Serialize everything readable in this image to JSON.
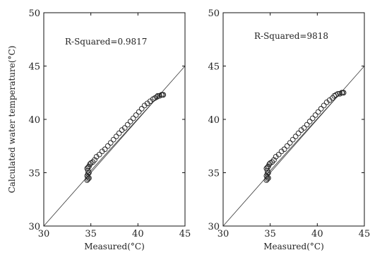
{
  "chart_data": [
    {
      "type": "scatter",
      "title": "",
      "xlabel": "Measured(°C)",
      "ylabel": "Calculated water temperature(°C)",
      "xlim": [
        30,
        45
      ],
      "ylim": [
        30,
        50
      ],
      "xticks": [
        "30",
        "35",
        "40",
        "45"
      ],
      "yticks": [
        "30",
        "35",
        "40",
        "45",
        "50"
      ],
      "annotation": "R-Squared=0.9817",
      "grid": false,
      "reference_line": {
        "x": [
          30,
          45
        ],
        "y": [
          30,
          45
        ]
      },
      "fit_line": {
        "x": [
          34.6,
          42.2
        ],
        "y": [
          34.8,
          42.2
        ]
      },
      "series": [
        {
          "x": [
            34.6,
            34.7,
            34.8,
            34.7,
            34.6,
            34.7,
            34.8,
            34.7,
            34.6,
            34.7,
            34.8,
            34.9,
            35.0,
            35.2,
            35.4,
            35.6,
            35.9,
            36.2,
            36.5,
            36.8,
            37.1,
            37.4,
            37.7,
            38.0,
            38.3,
            38.6,
            38.9,
            39.2,
            39.5,
            39.8,
            40.1,
            40.4,
            40.7,
            41.0,
            41.3,
            41.6,
            41.8,
            42.0,
            42.1,
            42.3,
            42.5,
            42.6,
            42.7
          ],
          "y": [
            34.3,
            34.4,
            34.5,
            34.6,
            34.7,
            34.9,
            35.0,
            35.2,
            35.4,
            35.5,
            35.6,
            35.8,
            35.9,
            36.0,
            36.2,
            36.5,
            36.7,
            37.0,
            37.2,
            37.5,
            37.8,
            38.1,
            38.4,
            38.7,
            39.0,
            39.2,
            39.5,
            39.8,
            40.1,
            40.4,
            40.7,
            41.0,
            41.3,
            41.5,
            41.7,
            41.9,
            42.0,
            42.1,
            42.2,
            42.2,
            42.3,
            42.3,
            42.3
          ]
        }
      ]
    },
    {
      "type": "scatter",
      "title": "",
      "xlabel": "Measured(°C)",
      "ylabel": "",
      "xlim": [
        30,
        45
      ],
      "ylim": [
        30,
        50
      ],
      "xticks": [
        "30",
        "35",
        "40",
        "45"
      ],
      "yticks": [
        "30",
        "35",
        "40",
        "45",
        "50"
      ],
      "annotation": "R-Squared=9818",
      "grid": false,
      "reference_line": {
        "x": [
          30,
          45
        ],
        "y": [
          30,
          45
        ]
      },
      "fit_line": {
        "x": [
          34.6,
          42.4
        ],
        "y": [
          34.8,
          42.4
        ]
      },
      "series": [
        {
          "x": [
            34.6,
            34.7,
            34.8,
            34.7,
            34.6,
            34.7,
            34.8,
            34.7,
            34.6,
            34.7,
            34.8,
            34.9,
            35.0,
            35.2,
            35.4,
            35.6,
            35.9,
            36.2,
            36.5,
            36.8,
            37.1,
            37.4,
            37.7,
            38.0,
            38.3,
            38.6,
            38.9,
            39.2,
            39.5,
            39.8,
            40.1,
            40.4,
            40.7,
            41.0,
            41.3,
            41.6,
            41.8,
            42.0,
            42.2,
            42.4,
            42.6,
            42.7,
            42.8
          ],
          "y": [
            34.3,
            34.4,
            34.5,
            34.6,
            34.7,
            34.9,
            35.0,
            35.2,
            35.4,
            35.5,
            35.6,
            35.8,
            35.9,
            36.0,
            36.2,
            36.5,
            36.7,
            37.0,
            37.2,
            37.5,
            37.8,
            38.1,
            38.4,
            38.7,
            39.0,
            39.2,
            39.5,
            39.8,
            40.1,
            40.4,
            40.7,
            41.0,
            41.3,
            41.6,
            41.8,
            42.0,
            42.2,
            42.3,
            42.4,
            42.4,
            42.5,
            42.5,
            42.5
          ]
        }
      ]
    }
  ]
}
